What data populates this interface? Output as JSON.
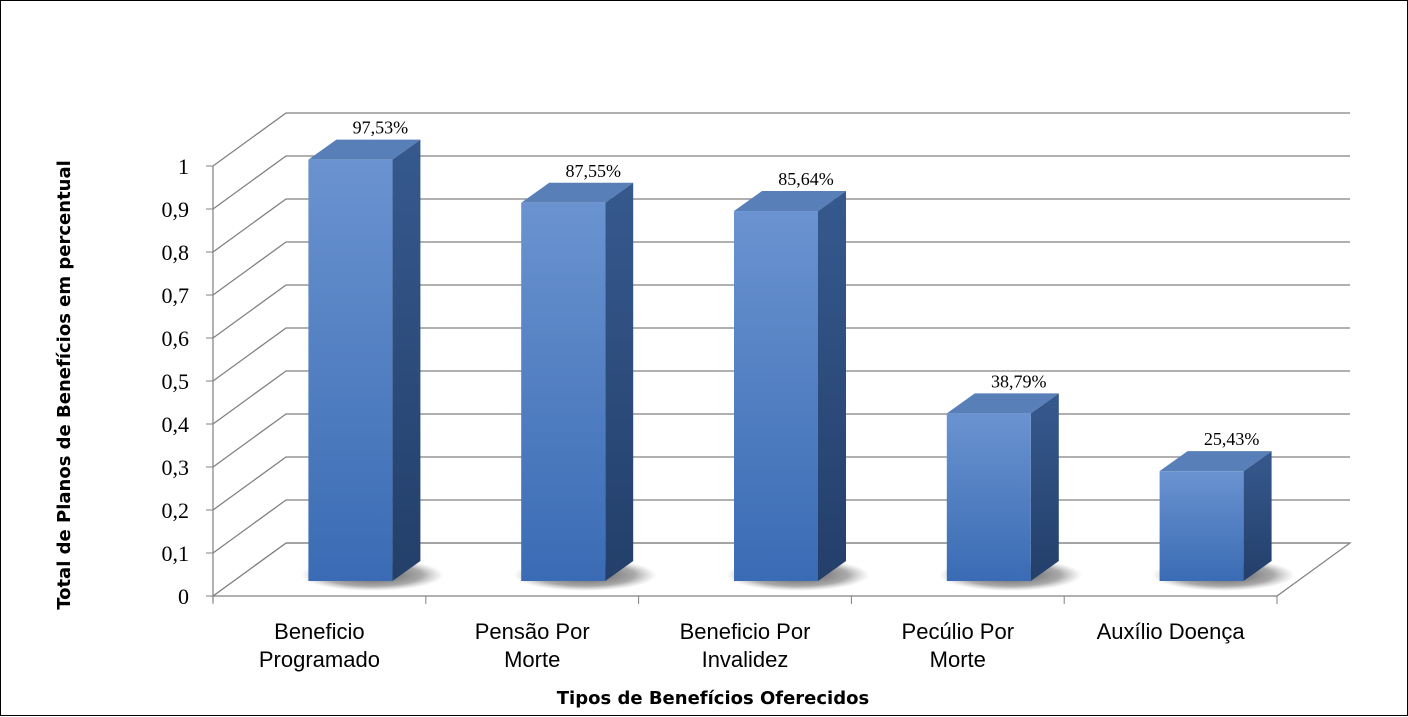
{
  "chart_data": {
    "type": "bar",
    "categories": [
      [
        "Beneficio",
        "Programado"
      ],
      [
        "Pensão Por",
        "Morte"
      ],
      [
        "Beneficio Por",
        "Invalidez"
      ],
      [
        "Pecúlio Por",
        "Morte"
      ],
      [
        "Auxílio Doença"
      ]
    ],
    "values": [
      0.9753,
      0.8755,
      0.8564,
      0.3879,
      0.2543
    ],
    "data_labels": [
      "97,53%",
      "87,55%",
      "85,64%",
      "38,79%",
      "25,43%"
    ],
    "y_ticks": [
      "0",
      "0,1",
      "0,2",
      "0,3",
      "0,4",
      "0,5",
      "0,6",
      "0,7",
      "0,8",
      "0,9",
      "1"
    ],
    "ylim": [
      0,
      1
    ],
    "xlabel": "Tipos de Benefícios Oferecidos",
    "ylabel": "Total de Planos de Benefícios em percentual",
    "title": "",
    "grid": true,
    "legend": "none",
    "style": "3d-column"
  },
  "colors": {
    "bar_front_top": "#6a93d0",
    "bar_front_bottom": "#3a6bb4",
    "bar_side": "#2b4d80",
    "bar_top": "#587fb8",
    "grid": "#808080",
    "floor_shadow": "#555555"
  }
}
